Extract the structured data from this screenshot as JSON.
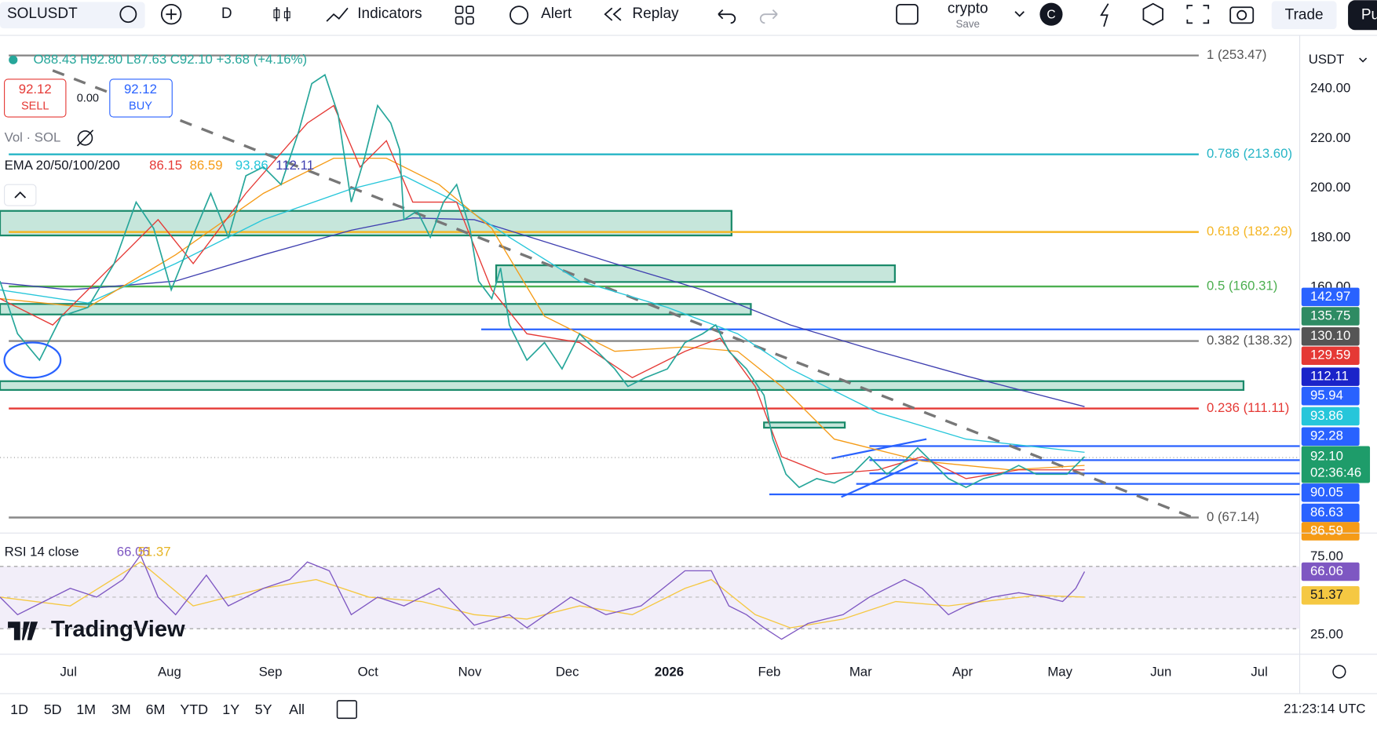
{
  "toolbar": {
    "symbol": "SOLUSDT",
    "interval": "D",
    "buttons": [
      "Indicators",
      "Alert",
      "Replay"
    ],
    "layout_name": "crypto",
    "save": "Save",
    "avatar": "C",
    "trade": "Trade",
    "publish": "Pu"
  },
  "legend": {
    "ohlc": "O88.43 H92.80 L87.63 C92.10 +3.68 (+4.16%)",
    "sell_price": "92.12",
    "sell": "SELL",
    "spread": "0.00",
    "buy_price": "92.12",
    "buy": "BUY",
    "volume": "Vol · SOL",
    "ema_label": "EMA 20/50/100/200",
    "ema_values": [
      {
        "label": "86.15",
        "color": "#e53935"
      },
      {
        "label": "86.59",
        "color": "#f59b16"
      },
      {
        "label": "93.86",
        "color": "#26c6da"
      },
      {
        "label": "112.11",
        "color": "#3f3fb0"
      }
    ]
  },
  "currency": "USDT",
  "price_axis": {
    "ticks": [
      "240.00",
      "220.00",
      "200.00",
      "180.00",
      "160.00"
    ]
  },
  "fib_levels": [
    {
      "label": "1 (253.47)",
      "price": 253.47,
      "color": "#888888"
    },
    {
      "label": "0.786 (213.60)",
      "price": 213.6,
      "color": "#26b5c6"
    },
    {
      "label": "0.618 (182.29)",
      "price": 182.29,
      "color": "#f5b625"
    },
    {
      "label": "0.5 (160.31)",
      "price": 160.31,
      "color": "#4caf50"
    },
    {
      "label": "0.382 (138.32)",
      "price": 138.32,
      "color": "#888888"
    },
    {
      "label": "0.236 (111.11)",
      "price": 111.11,
      "color": "#e53935"
    },
    {
      "label": "0 (67.14)",
      "price": 67.14,
      "color": "#888888"
    }
  ],
  "price_tags": [
    {
      "label": "142.97",
      "color": "#2962ff"
    },
    {
      "label": "135.75",
      "color": "#2e8b63"
    },
    {
      "label": "130.10",
      "color": "#555555"
    },
    {
      "label": "129.59",
      "color": "#e53935"
    },
    {
      "label": "112.11",
      "color": "#1a23c9"
    },
    {
      "label": "95.94",
      "color": "#2962ff"
    },
    {
      "label": "93.86",
      "color": "#26c6da"
    },
    {
      "label": "92.28",
      "color": "#2962ff"
    },
    {
      "label": "92.10",
      "sub": "02:36:46",
      "color": "#1e9c6a"
    },
    {
      "label": "90.05",
      "color": "#2962ff"
    },
    {
      "label": "86.63",
      "color": "#2962ff"
    },
    {
      "label": "86.59",
      "color": "#f59b16"
    }
  ],
  "rsi": {
    "label": "RSI 14 close",
    "value": "66.06",
    "ma": "51.37",
    "ticks": [
      "75.00",
      "25.00"
    ],
    "tags": [
      {
        "label": "66.06",
        "color": "#7e57c2"
      },
      {
        "label": "51.37",
        "color": "#f5c842"
      }
    ]
  },
  "time_axis": [
    "Jul",
    "Aug",
    "Sep",
    "Oct",
    "Nov",
    "Dec",
    "2026",
    "Feb",
    "Mar",
    "Apr",
    "May",
    "Jun",
    "Jul"
  ],
  "watermark": "TradingView",
  "ranges": [
    "1D",
    "5D",
    "1M",
    "3M",
    "6M",
    "YTD",
    "1Y",
    "5Y",
    "All"
  ],
  "clock": "21:23:14 UTC"
}
